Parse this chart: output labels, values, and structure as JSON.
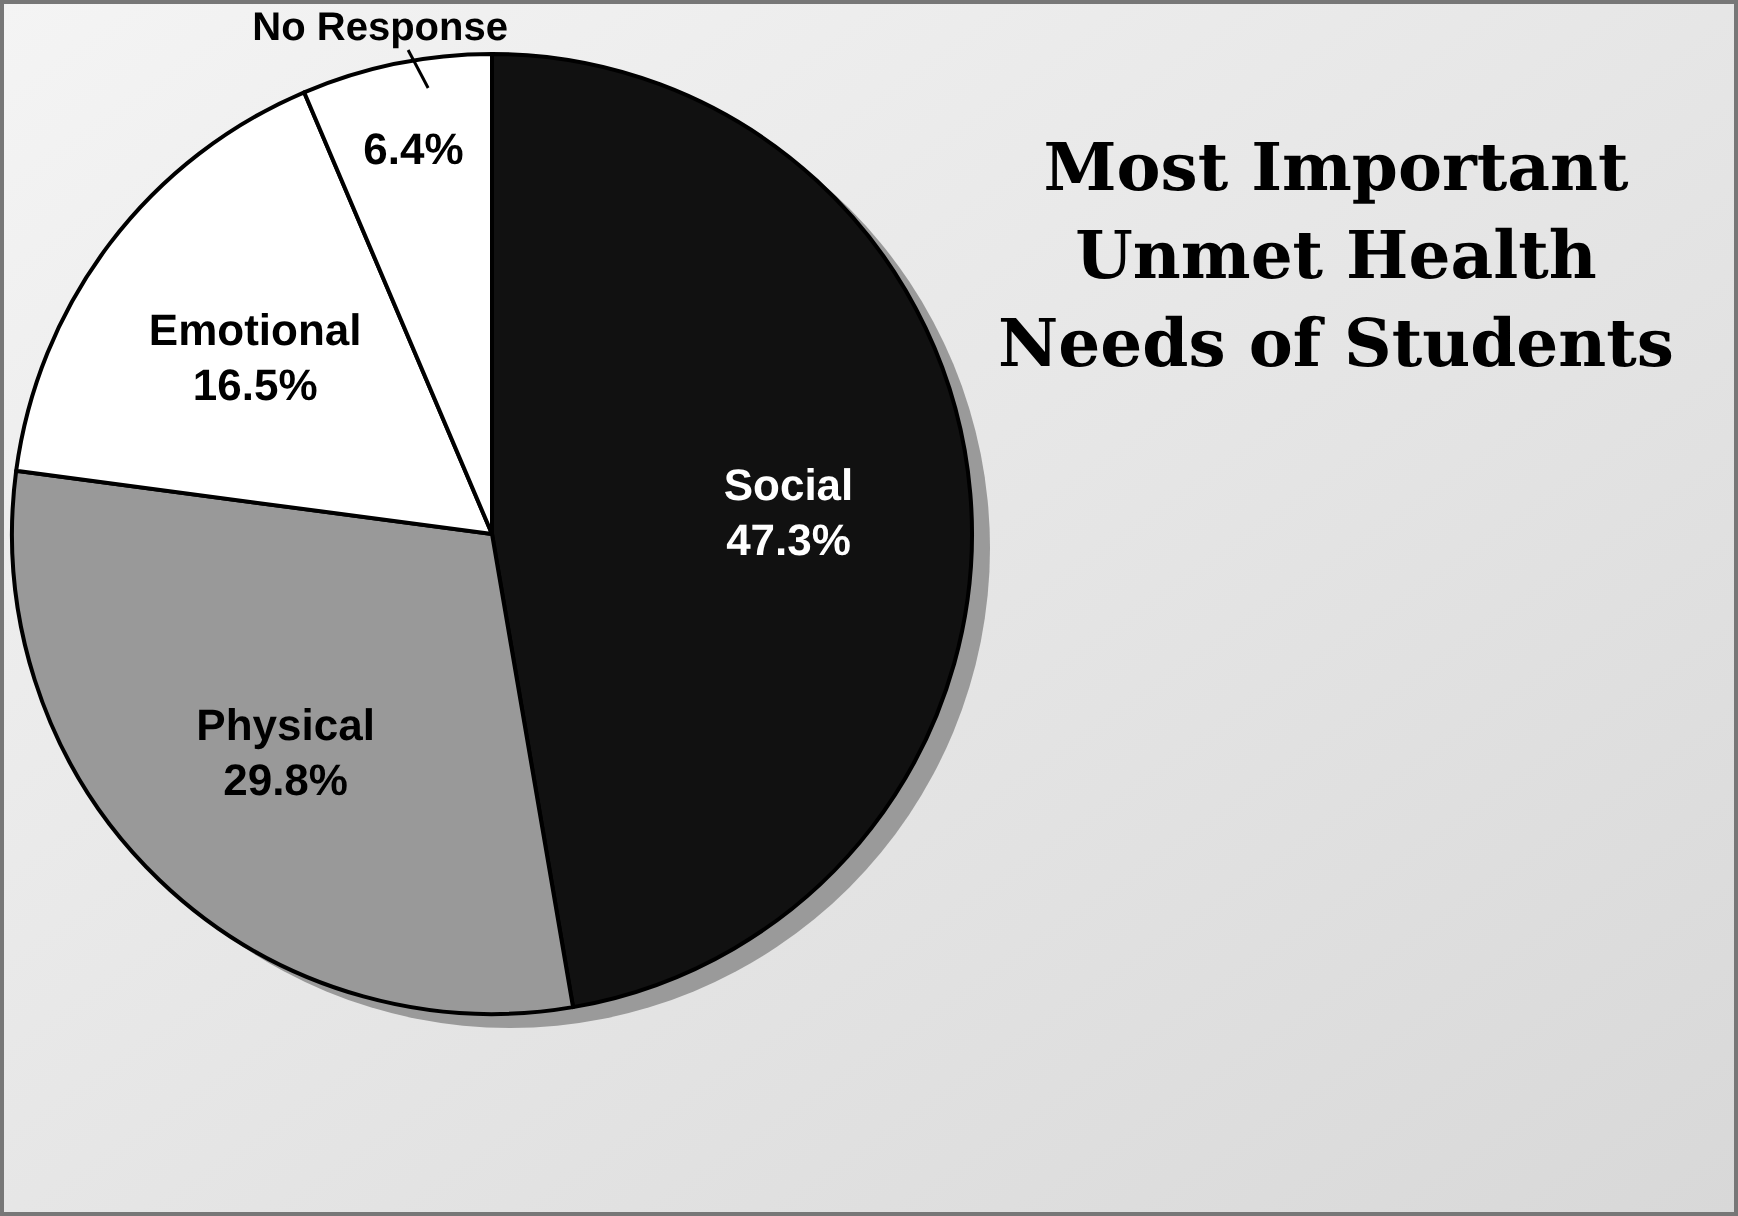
{
  "chart_data": {
    "type": "pie",
    "title": "Most Important Unmet Health Needs of Students",
    "categories": [
      "Social",
      "Physical",
      "Emotional",
      "No Response"
    ],
    "values": [
      47.3,
      29.8,
      16.5,
      6.4
    ],
    "colors": [
      "#111111",
      "#999999",
      "#ffffff",
      "#ffffff"
    ],
    "value_labels": [
      "47.3%",
      "29.8%",
      "16.5%",
      "6.4%"
    ],
    "legend": false
  }
}
